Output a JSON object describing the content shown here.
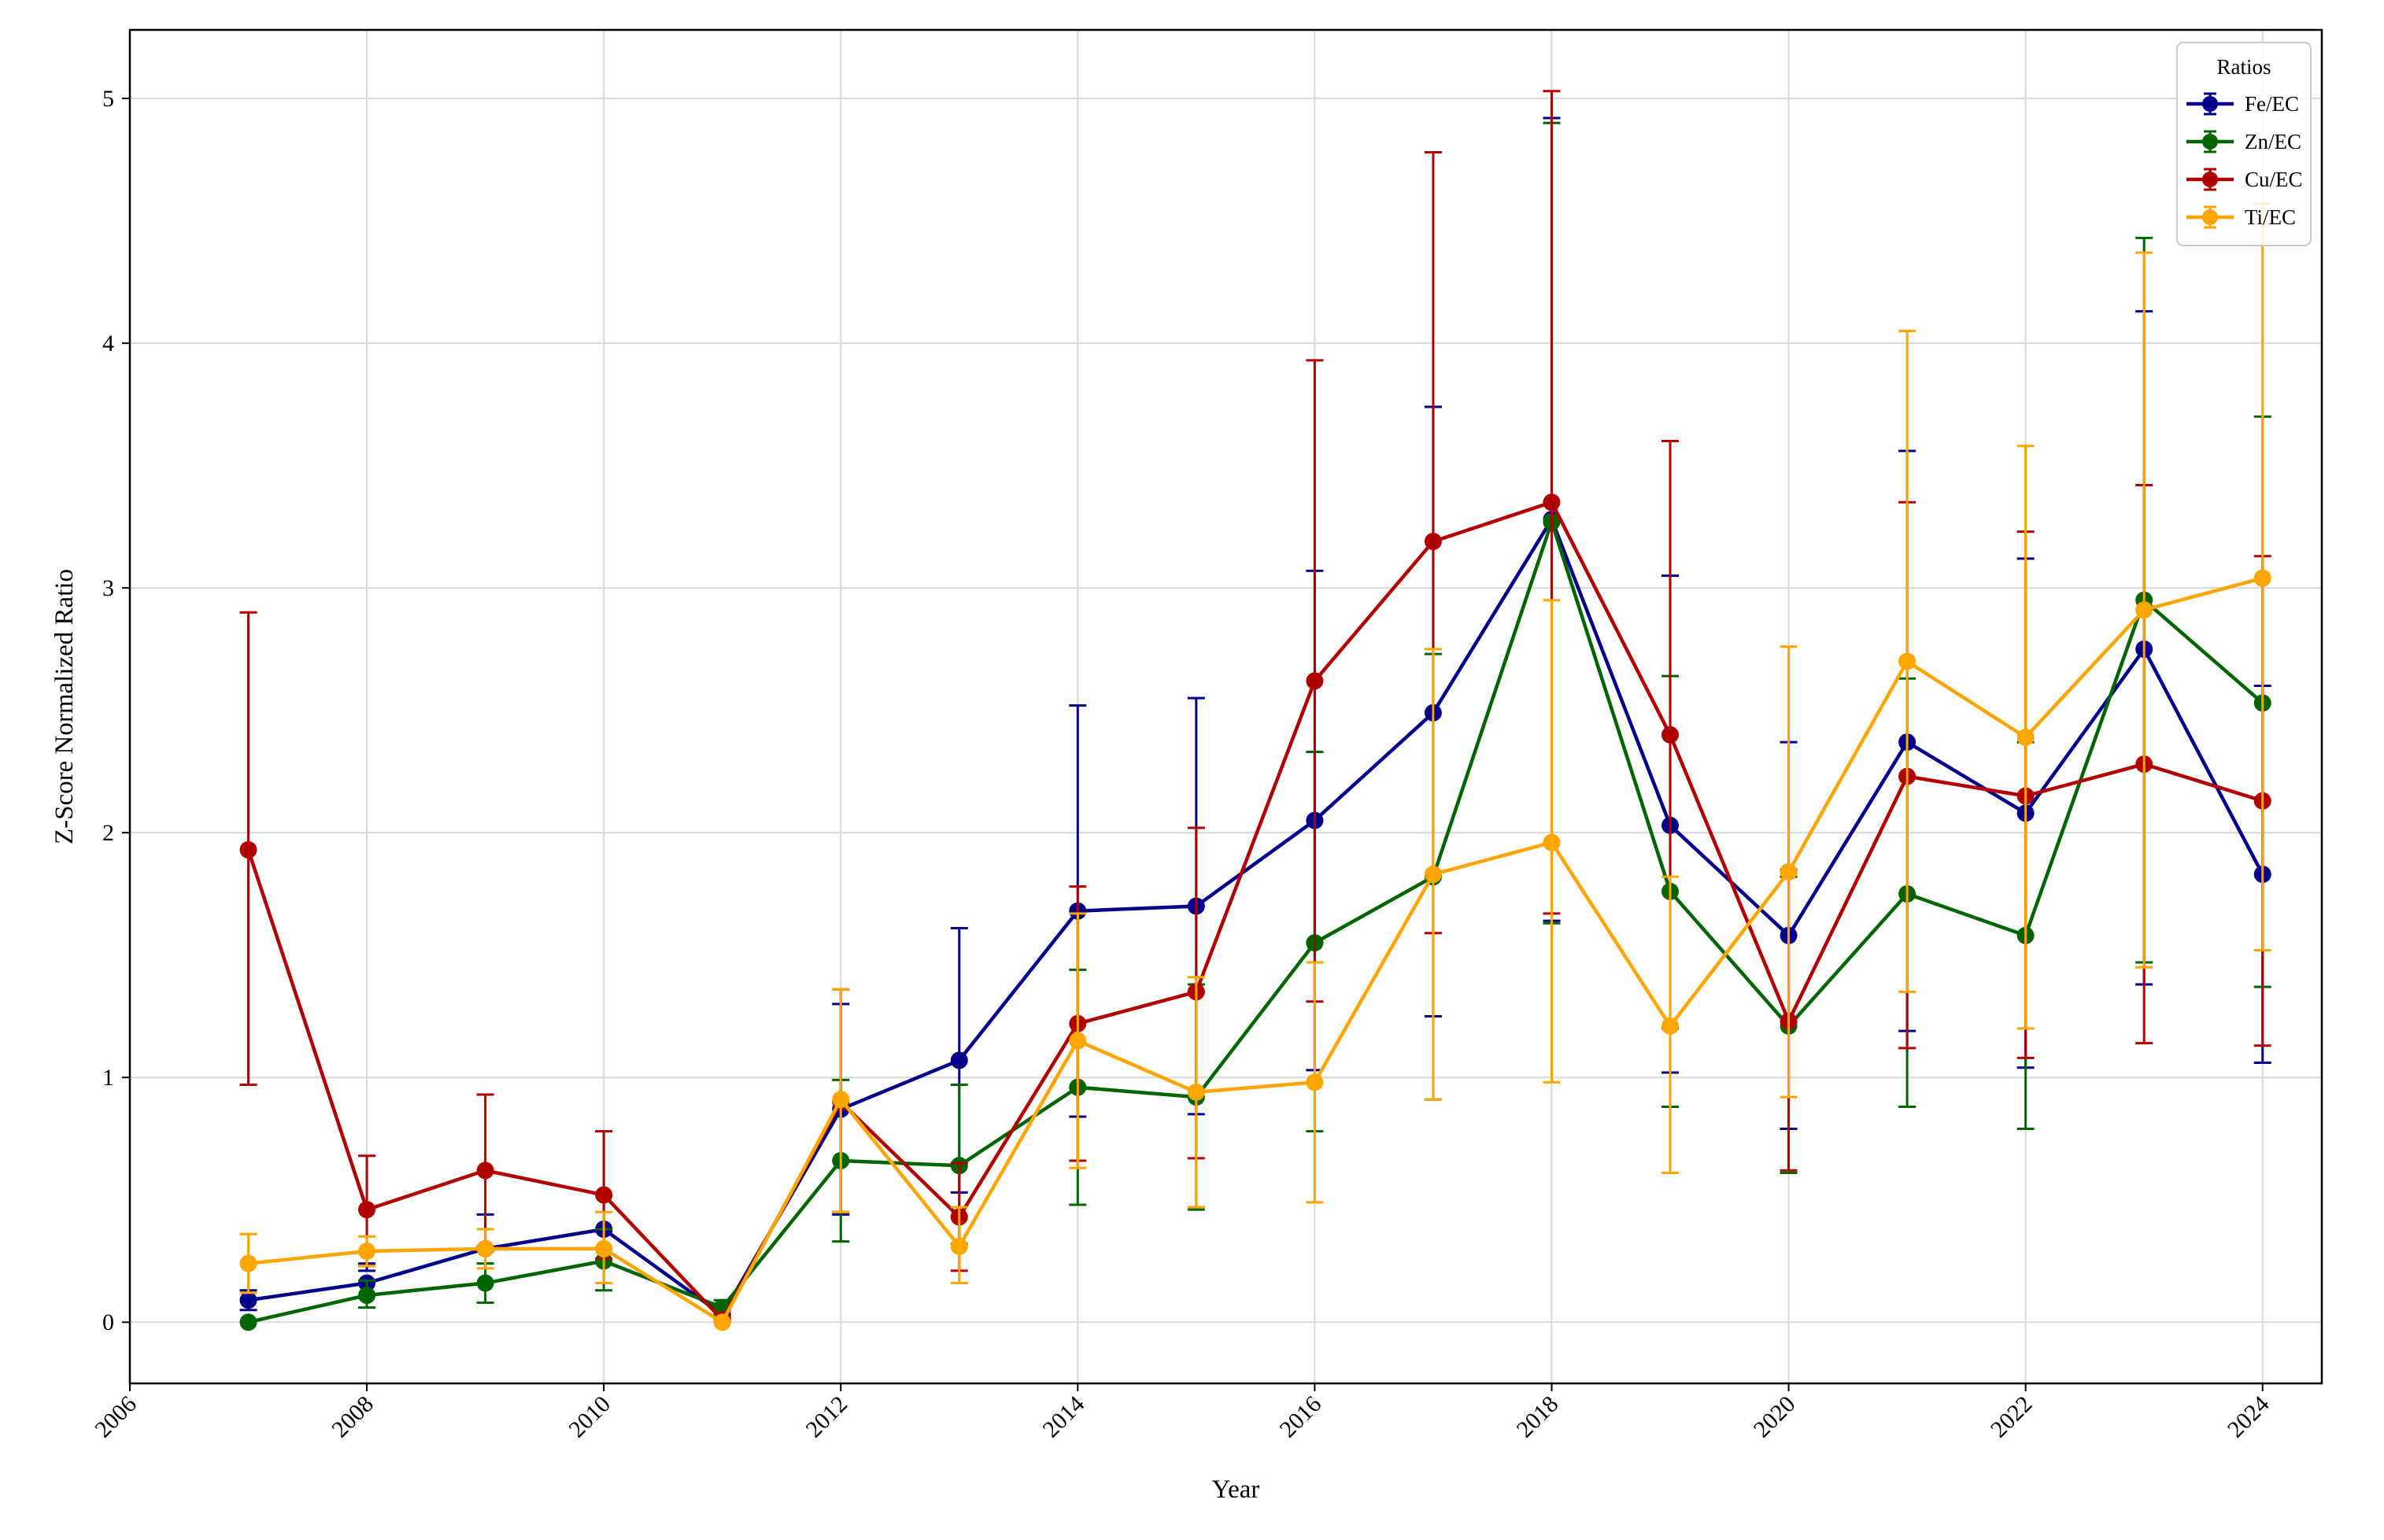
{
  "chart_data": {
    "type": "line",
    "title": "",
    "xlabel": "Year",
    "ylabel": "Z-Score Normalized Ratio",
    "xlim": [
      2006,
      2024.5
    ],
    "ylim": [
      -0.25,
      5.28
    ],
    "xticks": [
      2006,
      2008,
      2010,
      2012,
      2014,
      2016,
      2018,
      2020,
      2022,
      2024
    ],
    "yticks": [
      0,
      1,
      2,
      3,
      4,
      5
    ],
    "grid": true,
    "legend": {
      "title": "Ratios",
      "placement": "top-right"
    },
    "x": [
      2007,
      2008,
      2009,
      2010,
      2011,
      2012,
      2013,
      2014,
      2015,
      2016,
      2017,
      2018,
      2019,
      2020,
      2021,
      2022,
      2023,
      2024
    ],
    "series": [
      {
        "name": "Fe/EC",
        "color": "#00008b",
        "values": [
          0.09,
          0.16,
          0.3,
          0.38,
          0.03,
          0.87,
          1.07,
          1.68,
          1.7,
          2.05,
          2.49,
          3.28,
          2.03,
          1.58,
          2.37,
          2.08,
          2.75,
          1.83
        ],
        "err_low": [
          0.05,
          0.21,
          0.29,
          0.37,
          0.03,
          0.44,
          0.53,
          0.84,
          0.85,
          1.03,
          1.25,
          1.64,
          1.02,
          0.79,
          1.19,
          1.04,
          1.38,
          1.06
        ],
        "err_high": [
          0.13,
          0.24,
          0.44,
          0.52,
          0.05,
          1.3,
          1.61,
          2.52,
          2.55,
          3.07,
          3.74,
          4.92,
          3.05,
          2.37,
          3.56,
          3.12,
          4.13,
          2.6
        ]
      },
      {
        "name": "Zn/EC",
        "color": "#006400",
        "values": [
          0.0,
          0.11,
          0.16,
          0.25,
          0.06,
          0.66,
          0.64,
          0.96,
          0.92,
          1.55,
          1.82,
          3.27,
          1.76,
          1.21,
          1.75,
          1.58,
          2.95,
          2.53
        ],
        "err_low": [
          0.0,
          0.06,
          0.08,
          0.13,
          0.03,
          0.33,
          0.32,
          0.48,
          0.46,
          0.78,
          0.91,
          1.63,
          0.88,
          0.61,
          0.88,
          0.79,
          1.47,
          1.37
        ],
        "err_high": [
          0.0,
          0.17,
          0.24,
          0.38,
          0.09,
          0.99,
          0.97,
          1.44,
          1.38,
          2.33,
          2.73,
          4.9,
          2.64,
          1.82,
          2.63,
          2.37,
          4.43,
          3.7
        ]
      },
      {
        "name": "Cu/EC",
        "color": "#b00000",
        "values": [
          1.93,
          0.46,
          0.62,
          0.52,
          0.01,
          0.9,
          0.43,
          1.22,
          1.35,
          2.62,
          3.19,
          3.35,
          2.4,
          1.23,
          2.23,
          2.15,
          2.28,
          2.13
        ],
        "err_low": [
          0.97,
          0.23,
          0.31,
          0.26,
          0.0,
          0.45,
          0.21,
          0.66,
          0.67,
          1.31,
          1.59,
          1.67,
          1.2,
          0.62,
          1.12,
          1.08,
          1.14,
          1.13
        ],
        "err_high": [
          2.9,
          0.68,
          0.93,
          0.78,
          0.02,
          1.36,
          0.65,
          1.78,
          2.02,
          3.93,
          4.78,
          5.03,
          3.6,
          1.85,
          3.35,
          3.23,
          3.42,
          3.13
        ]
      },
      {
        "name": "Ti/EC",
        "color": "#ffa500",
        "values": [
          0.24,
          0.29,
          0.3,
          0.3,
          0.0,
          0.91,
          0.31,
          1.15,
          0.94,
          0.98,
          1.83,
          1.96,
          1.21,
          1.84,
          2.7,
          2.39,
          2.91,
          3.04
        ],
        "err_low": [
          0.12,
          0.23,
          0.22,
          0.16,
          0.0,
          0.45,
          0.16,
          0.63,
          0.47,
          0.49,
          0.91,
          0.98,
          0.61,
          0.92,
          1.35,
          1.2,
          1.45,
          1.52
        ],
        "err_high": [
          0.36,
          0.35,
          0.38,
          0.45,
          0.0,
          1.36,
          0.47,
          1.67,
          1.41,
          1.47,
          2.75,
          2.95,
          1.82,
          2.76,
          4.05,
          3.58,
          4.37,
          4.57
        ]
      }
    ]
  }
}
